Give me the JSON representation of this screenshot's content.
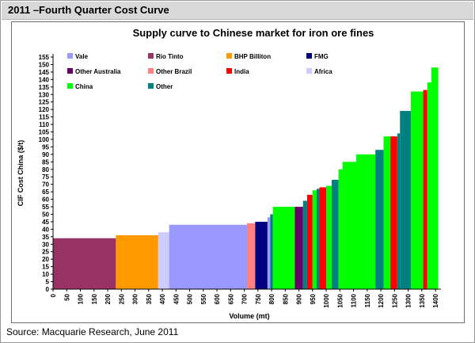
{
  "header": {
    "title": "2011 –Fourth Quarter Cost Curve"
  },
  "source": "Source: Macquarie Research, June 2011",
  "chart_data": {
    "type": "bar",
    "subtype": "cost-curve",
    "title": "Supply curve to Chinese market for iron ore fines",
    "xlabel": "Volume (mt)",
    "ylabel": "CIF Cost China ($/t)",
    "xlim": [
      0,
      1420
    ],
    "ylim": [
      0,
      155
    ],
    "x_ticks": [
      0,
      50,
      100,
      150,
      200,
      250,
      300,
      350,
      400,
      450,
      500,
      550,
      600,
      650,
      700,
      750,
      800,
      850,
      900,
      950,
      1000,
      1050,
      1100,
      1150,
      1200,
      1250,
      1300,
      1350,
      1400
    ],
    "y_ticks": [
      0,
      5,
      10,
      15,
      20,
      25,
      30,
      35,
      40,
      45,
      50,
      55,
      60,
      65,
      70,
      75,
      80,
      85,
      90,
      95,
      100,
      105,
      110,
      115,
      120,
      125,
      130,
      135,
      140,
      145,
      150,
      155
    ],
    "grid": false,
    "legend_position": "top",
    "legend": [
      {
        "name": "Vale",
        "color": "#9999ff"
      },
      {
        "name": "Rio Tinto",
        "color": "#993366"
      },
      {
        "name": "BHP Billiton",
        "color": "#ff9900"
      },
      {
        "name": "FMG",
        "color": "#000080"
      },
      {
        "name": "Other Australia",
        "color": "#660066"
      },
      {
        "name": "Other Brazil",
        "color": "#ff8080"
      },
      {
        "name": "India",
        "color": "#ff0000"
      },
      {
        "name": "Africa",
        "color": "#ccccff"
      },
      {
        "name": "China",
        "color": "#00ff00"
      },
      {
        "name": "Other",
        "color": "#008080"
      }
    ],
    "bars": [
      {
        "producer": "Rio Tinto",
        "x0": 0,
        "x1": 230,
        "value": 34
      },
      {
        "producer": "BHP Billiton",
        "x0": 230,
        "x1": 385,
        "value": 36
      },
      {
        "producer": "Africa",
        "x0": 385,
        "x1": 425,
        "value": 38
      },
      {
        "producer": "Vale",
        "x0": 425,
        "x1": 710,
        "value": 43
      },
      {
        "producer": "Other Brazil",
        "x0": 710,
        "x1": 740,
        "value": 44
      },
      {
        "producer": "FMG",
        "x0": 740,
        "x1": 785,
        "value": 45
      },
      {
        "producer": "Vale",
        "x0": 785,
        "x1": 795,
        "value": 48
      },
      {
        "producer": "Other",
        "x0": 795,
        "x1": 805,
        "value": 50
      },
      {
        "producer": "China",
        "x0": 805,
        "x1": 885,
        "value": 55
      },
      {
        "producer": "Other Australia",
        "x0": 885,
        "x1": 915,
        "value": 55
      },
      {
        "producer": "Other",
        "x0": 915,
        "x1": 930,
        "value": 59
      },
      {
        "producer": "India",
        "x0": 930,
        "x1": 950,
        "value": 63
      },
      {
        "producer": "China",
        "x0": 950,
        "x1": 965,
        "value": 66
      },
      {
        "producer": "Other",
        "x0": 965,
        "x1": 975,
        "value": 67
      },
      {
        "producer": "India",
        "x0": 975,
        "x1": 1000,
        "value": 68
      },
      {
        "producer": "China",
        "x0": 1000,
        "x1": 1020,
        "value": 69
      },
      {
        "producer": "Other",
        "x0": 1020,
        "x1": 1045,
        "value": 73
      },
      {
        "producer": "China",
        "x0": 1045,
        "x1": 1060,
        "value": 80
      },
      {
        "producer": "China",
        "x0": 1060,
        "x1": 1110,
        "value": 85
      },
      {
        "producer": "China",
        "x0": 1110,
        "x1": 1180,
        "value": 90
      },
      {
        "producer": "Other",
        "x0": 1180,
        "x1": 1210,
        "value": 93
      },
      {
        "producer": "China",
        "x0": 1210,
        "x1": 1235,
        "value": 102
      },
      {
        "producer": "India",
        "x0": 1235,
        "x1": 1260,
        "value": 102
      },
      {
        "producer": "Other",
        "x0": 1260,
        "x1": 1270,
        "value": 104
      },
      {
        "producer": "Other",
        "x0": 1270,
        "x1": 1310,
        "value": 119
      },
      {
        "producer": "China",
        "x0": 1310,
        "x1": 1355,
        "value": 132
      },
      {
        "producer": "India",
        "x0": 1355,
        "x1": 1370,
        "value": 133
      },
      {
        "producer": "China",
        "x0": 1370,
        "x1": 1385,
        "value": 138
      },
      {
        "producer": "China",
        "x0": 1385,
        "x1": 1410,
        "value": 148
      }
    ]
  }
}
